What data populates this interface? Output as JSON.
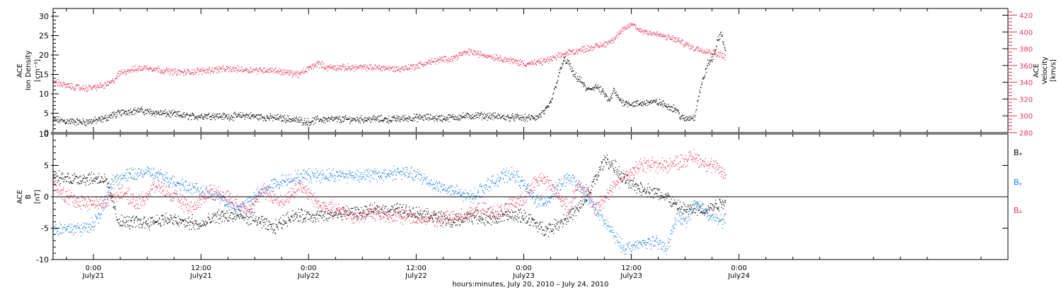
{
  "colors": {
    "axis": "#000000",
    "black_series": "#000000",
    "red_series": "#e8335f",
    "blue_series": "#1a7ee0"
  },
  "xaxis": {
    "xlim": [
      -4.5,
      102
    ],
    "ticks": [
      {
        "hour": 0,
        "time": "0:00",
        "date": "July21"
      },
      {
        "hour": 12,
        "time": "12:00",
        "date": "July21"
      },
      {
        "hour": 24,
        "time": "0:00",
        "date": "July22"
      },
      {
        "hour": 36,
        "time": "12:00",
        "date": "July22"
      },
      {
        "hour": 48,
        "time": "0:00",
        "date": "July23"
      },
      {
        "hour": 60,
        "time": "12:00",
        "date": "July23"
      },
      {
        "hour": 72,
        "time": "0:00",
        "date": "July24"
      }
    ],
    "caption": "hours:minutes, July 20, 2010 – July 24, 2010"
  },
  "chart_data": [
    {
      "type": "scatter",
      "panel": "top",
      "ylabel_left": [
        "ACE",
        "Ion Density",
        "[cm⁻³]"
      ],
      "ylim_left": [
        0,
        32
      ],
      "yticks_left": [
        0,
        5,
        10,
        15,
        20,
        25,
        30
      ],
      "ylabel_right": [
        "ACE",
        "Velocity",
        "[km/s]"
      ],
      "ylim_right": [
        280,
        428
      ],
      "yticks_right": [
        280,
        300,
        320,
        340,
        360,
        380,
        400,
        420
      ],
      "grid": false,
      "series": [
        {
          "axis": "left",
          "color": "black",
          "x": [
            -4.5,
            -3,
            -1,
            1,
            2,
            3.5,
            5,
            7,
            9,
            11,
            13,
            15,
            17,
            19,
            21,
            23,
            24,
            25,
            27,
            29,
            31,
            33,
            35,
            37,
            39,
            41,
            43,
            45,
            46,
            47,
            48,
            49.5,
            50.5,
            51,
            51.5,
            52,
            52.5,
            53,
            53.5,
            54,
            54.5,
            55,
            56,
            57,
            57.5,
            58,
            58.5,
            59,
            60,
            61,
            62,
            63,
            64,
            65,
            65.5,
            66,
            66.5,
            67,
            67.5,
            68,
            68.5,
            69,
            69.5,
            70,
            70.5
          ],
          "y": [
            3.5,
            3,
            2.8,
            3.5,
            4.5,
            5.5,
            5.8,
            5.2,
            4.8,
            4.2,
            4.5,
            4.2,
            4.5,
            4,
            3.8,
            3.2,
            2.8,
            3.5,
            3.5,
            3.5,
            3.6,
            3.5,
            3.8,
            4,
            3.8,
            4.2,
            4.5,
            4.2,
            4,
            4,
            3.8,
            4,
            6,
            8,
            12,
            16,
            19,
            18,
            15,
            14,
            13,
            11,
            12,
            10,
            8,
            11,
            9,
            8,
            7.5,
            7.5,
            8,
            7.8,
            7,
            6,
            4,
            3.5,
            4,
            4,
            10,
            14,
            18,
            19,
            23,
            26,
            20
          ]
        },
        {
          "axis": "right",
          "color": "red",
          "x": [
            -4.5,
            -3,
            -1,
            1,
            2,
            2.5,
            3,
            4,
            6,
            8,
            10,
            12,
            14,
            16,
            18,
            20,
            22,
            23,
            24,
            25,
            26,
            28,
            30,
            32,
            34,
            36,
            38,
            40,
            41,
            42,
            43,
            45,
            47,
            48,
            49,
            50,
            51,
            52,
            53,
            54,
            55,
            56,
            57,
            58,
            59,
            60,
            61,
            62,
            63,
            64,
            65,
            66,
            67,
            68,
            69,
            70,
            70.5
          ],
          "y": [
            342,
            336,
            333,
            336,
            340,
            346,
            352,
            355,
            358,
            354,
            352,
            354,
            356,
            356,
            355,
            355,
            351,
            350,
            357,
            363,
            358,
            358,
            358,
            358,
            356,
            360,
            366,
            369,
            374,
            377,
            374,
            370,
            365,
            363,
            363,
            365,
            368,
            372,
            376,
            378,
            381,
            383,
            386,
            392,
            402,
            410,
            402,
            400,
            397,
            394,
            391,
            386,
            381,
            379,
            376,
            373,
            371
          ]
        }
      ]
    },
    {
      "type": "scatter",
      "panel": "bottom",
      "ylabel_left": [
        "ACE",
        "B",
        "[nT]"
      ],
      "ylim_left": [
        -10,
        10
      ],
      "yticks_left": [
        -10,
        -5,
        0,
        5,
        10
      ],
      "zero_line": 0,
      "grid": false,
      "legend": {
        "placement": "right",
        "entries": [
          {
            "name": "Bₓ",
            "color": "black"
          },
          {
            "name": "Bᵧ",
            "color": "blue"
          },
          {
            "name": "Bₔ",
            "color": "red"
          }
        ]
      },
      "series": [
        {
          "name": "Bx",
          "color": "black",
          "x": [
            -4.5,
            -3,
            -1,
            1,
            1.5,
            2,
            2.5,
            3,
            4,
            6,
            8,
            10,
            12,
            14,
            16,
            18,
            20,
            22,
            24,
            26,
            28,
            30,
            32,
            34,
            36,
            38,
            40,
            42,
            44,
            46,
            47,
            48,
            49,
            50,
            51,
            52,
            53,
            54,
            55,
            56,
            57,
            58,
            59,
            60,
            61,
            62,
            63,
            64,
            65,
            66,
            67,
            68,
            69,
            70,
            70.5
          ],
          "y": [
            3,
            3,
            3,
            3,
            2,
            0,
            -3,
            -4,
            -4,
            -4,
            -3.5,
            -4,
            -4.5,
            -3,
            -3,
            -3.5,
            -5,
            -3,
            -3,
            -3,
            -2.5,
            -2.5,
            -2,
            -2,
            -2.5,
            -3,
            -4,
            -3,
            -3.5,
            -3,
            -3,
            -3,
            -4,
            -5,
            -5,
            -4,
            -3,
            -2,
            0,
            3,
            6,
            5,
            3,
            2,
            1.5,
            1,
            0.5,
            0,
            -1.5,
            -2,
            -2,
            -2,
            -1.5,
            -1,
            -0.5
          ]
        },
        {
          "name": "By",
          "color": "blue",
          "x": [
            -4.5,
            -3,
            -1,
            0,
            1,
            1.5,
            2,
            2.5,
            3,
            4,
            6,
            8,
            10,
            12,
            14,
            16,
            18,
            20,
            22,
            24,
            26,
            28,
            30,
            32,
            34,
            36,
            38,
            40,
            42,
            44,
            46,
            47,
            48,
            49,
            50,
            51,
            52,
            53,
            54,
            55,
            56,
            57,
            58,
            59,
            60,
            61,
            62,
            63,
            64,
            65,
            66,
            67,
            68,
            69,
            70,
            70.5
          ],
          "y": [
            -5,
            -5,
            -5,
            -4,
            -2,
            0,
            2,
            3,
            3,
            3.5,
            4,
            3,
            2,
            1,
            0,
            -2,
            0,
            2,
            3,
            3.5,
            3.5,
            3.5,
            3.5,
            3.5,
            4,
            3.5,
            2,
            1,
            0,
            2,
            3.5,
            3.5,
            2,
            0,
            -1,
            0,
            2,
            3,
            2,
            0,
            -2,
            -4,
            -6,
            -8,
            -8,
            -7.5,
            -7,
            -7.5,
            -8,
            -3,
            -4,
            -1,
            -2,
            -3,
            -4,
            -3
          ]
        },
        {
          "name": "Bz",
          "color": "red",
          "x": [
            -4.5,
            -3,
            -1,
            1,
            2,
            3,
            5,
            7,
            9,
            11,
            13,
            15,
            17,
            19,
            21,
            23,
            25,
            27,
            29,
            31,
            33,
            35,
            37,
            39,
            41,
            43,
            45,
            47,
            48,
            49,
            50,
            51,
            52,
            53,
            54,
            55,
            56,
            57,
            58,
            59,
            60,
            61,
            62,
            63,
            64,
            65,
            66,
            67,
            68,
            69,
            70,
            70.5
          ],
          "y": [
            2,
            0,
            -1,
            -1,
            0,
            1,
            -1,
            2,
            0,
            -2,
            1,
            0,
            -2,
            1,
            -1,
            2,
            -1,
            -2,
            -3,
            -2.5,
            -3,
            -3,
            -3.5,
            -3.5,
            -3,
            -2,
            -2.5,
            -1,
            0,
            2,
            3,
            2,
            0,
            -2,
            2,
            1,
            -2,
            0,
            2,
            3,
            4,
            5,
            5.5,
            5,
            5,
            5.5,
            6,
            6.5,
            5.5,
            5,
            4,
            3.5
          ]
        }
      ]
    }
  ]
}
